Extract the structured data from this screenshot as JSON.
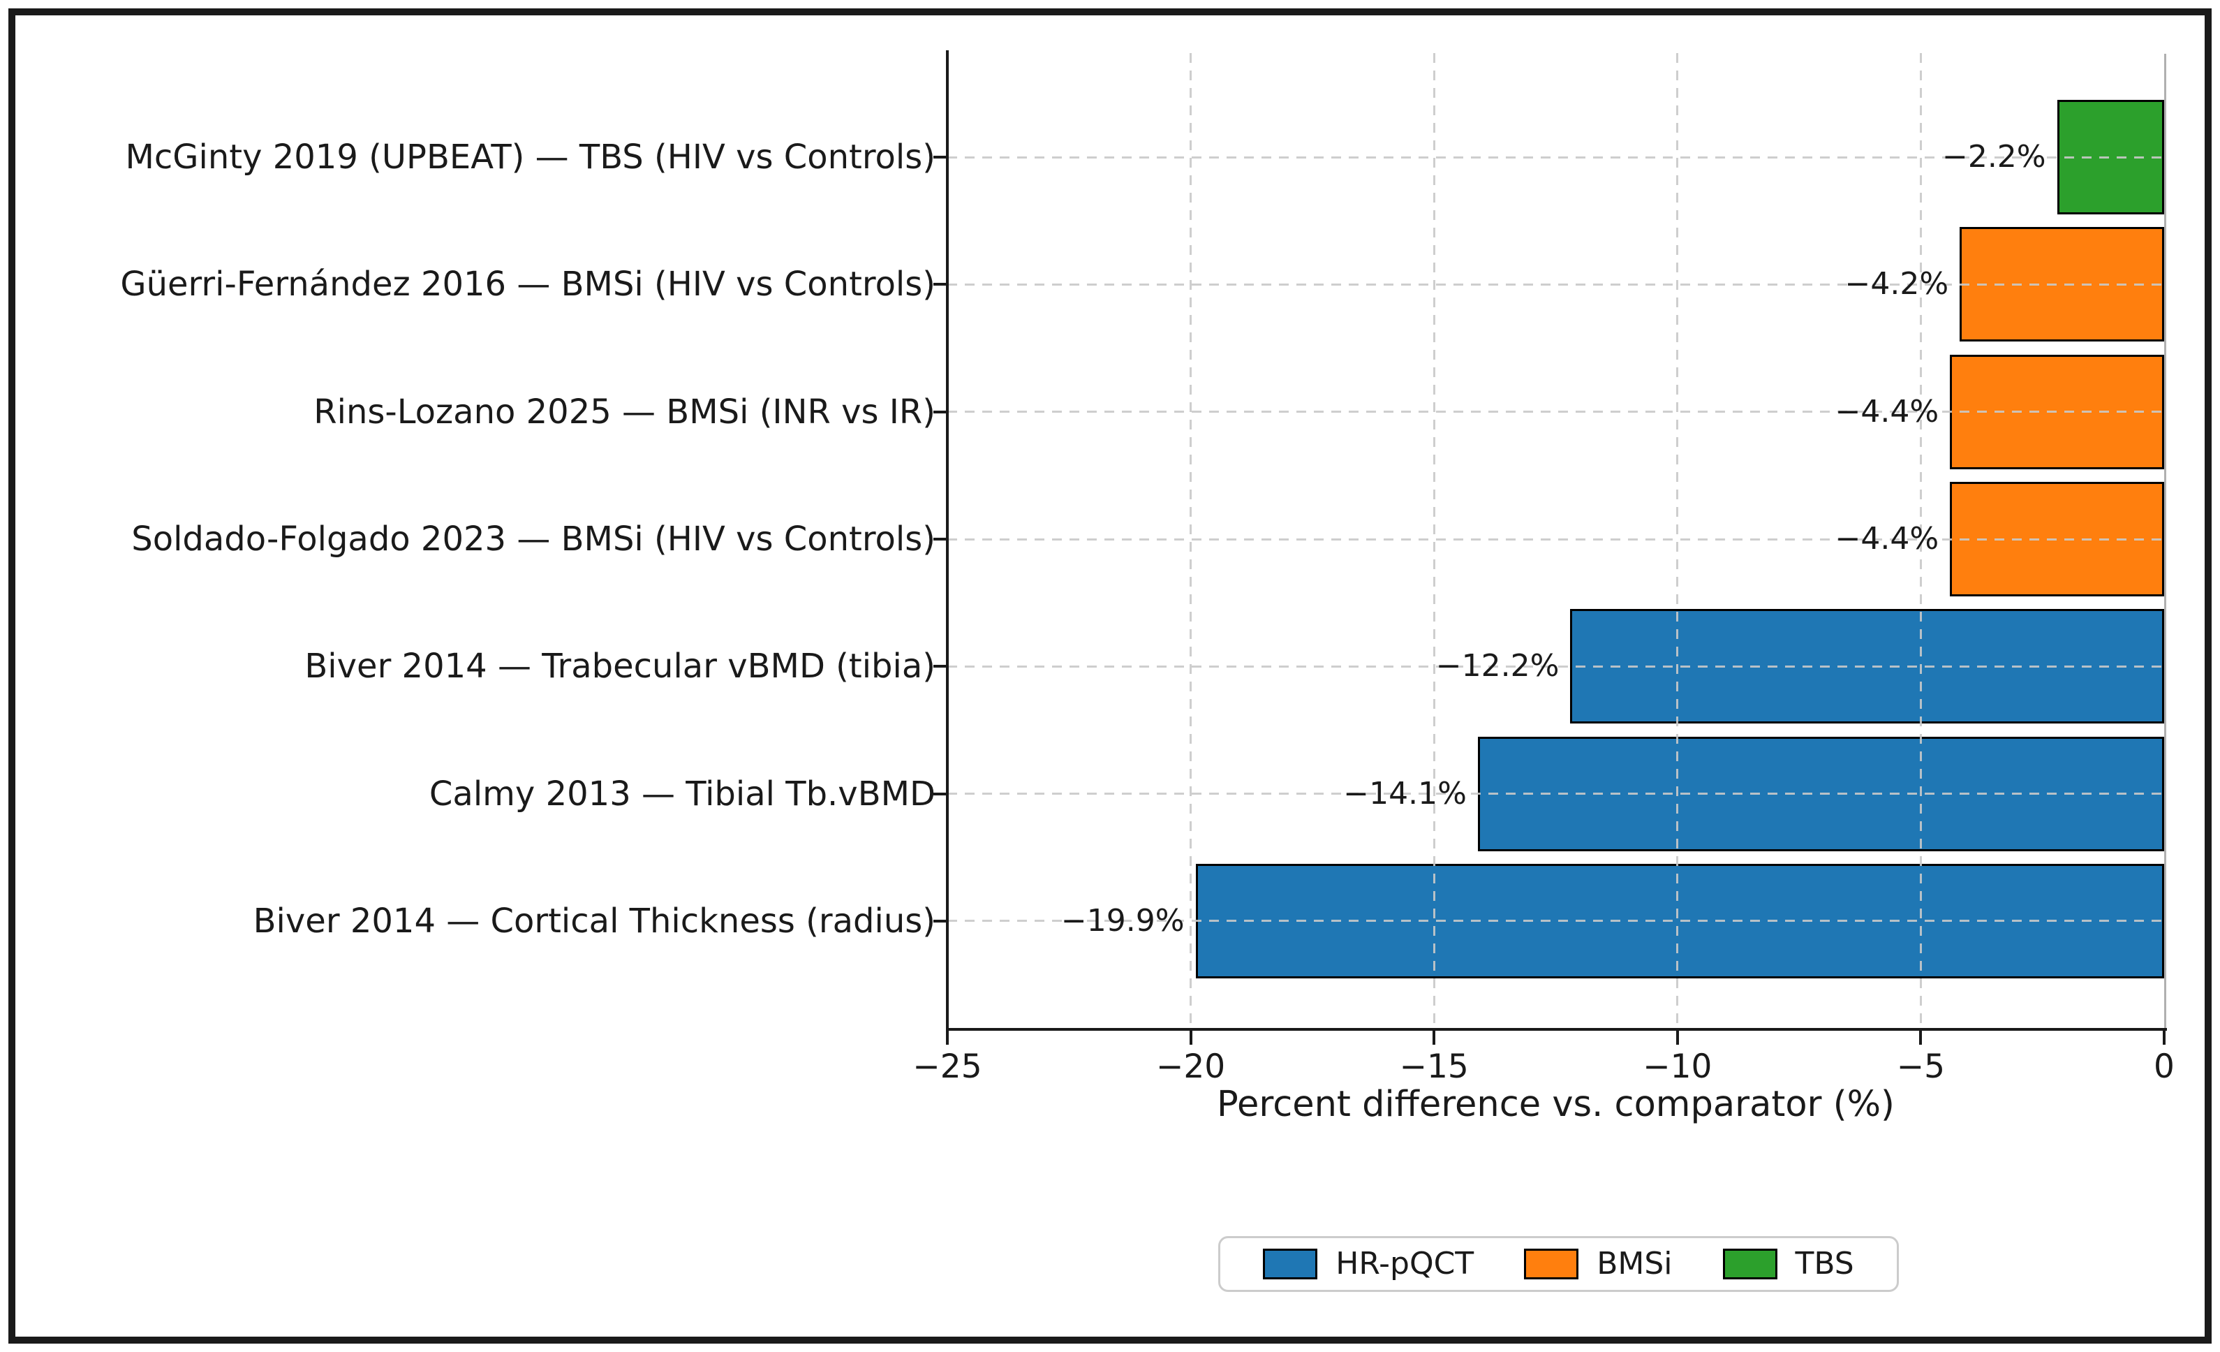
{
  "chart_data": {
    "type": "bar",
    "orientation": "horizontal",
    "title": "",
    "xlabel": "Percent difference vs. comparator (%)",
    "xlim": [
      -25,
      0
    ],
    "xtick_values": [
      -25,
      -20,
      -15,
      -10,
      -5,
      0
    ],
    "xtick_labels": [
      "−25",
      "−20",
      "−15",
      "−10",
      "−5",
      "0"
    ],
    "grid": "dashed",
    "legend_position": "bottom",
    "bars": [
      {
        "label": "McGinty 2019 (UPBEAT) — TBS (HIV vs Controls)",
        "value": -2.2,
        "value_label": "−2.2%",
        "group": "TBS"
      },
      {
        "label": "Güerri-Fernández 2016 — BMSi (HIV vs Controls)",
        "value": -4.2,
        "value_label": "−4.2%",
        "group": "BMSi"
      },
      {
        "label": "Rins-Lozano 2025 — BMSi (INR vs IR)",
        "value": -4.4,
        "value_label": "−4.4%",
        "group": "BMSi"
      },
      {
        "label": "Soldado-Folgado 2023 — BMSi (HIV vs Controls)",
        "value": -4.4,
        "value_label": "−4.4%",
        "group": "BMSi"
      },
      {
        "label": "Biver 2014 — Trabecular vBMD (tibia)",
        "value": -12.2,
        "value_label": "−12.2%",
        "group": "HR-pQCT"
      },
      {
        "label": "Calmy 2013 — Tibial Tb.vBMD",
        "value": -14.1,
        "value_label": "−14.1%",
        "group": "HR-pQCT"
      },
      {
        "label": "Biver 2014 — Cortical Thickness (radius)",
        "value": -19.9,
        "value_label": "−19.9%",
        "group": "HR-pQCT"
      }
    ],
    "legend": [
      {
        "label": "HR-pQCT",
        "color": "#1f77b4"
      },
      {
        "label": "BMSi",
        "color": "#ff7f0e"
      },
      {
        "label": "TBS",
        "color": "#2ca02c"
      }
    ],
    "colors": {
      "HR-pQCT": "#1f77b4",
      "BMSi": "#ff7f0e",
      "TBS": "#2ca02c",
      "bar_edge": "#000000",
      "grid": "#c9c9c9",
      "axis": "#1a1a1a",
      "right_boundary": "#b0b0b0",
      "frame": "#1a1a1a",
      "background": "#ffffff"
    }
  }
}
